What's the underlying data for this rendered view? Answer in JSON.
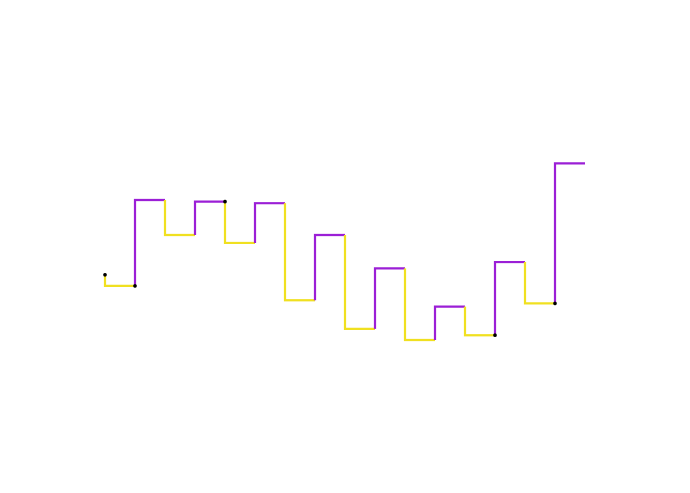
{
  "chart_data": {
    "type": "line",
    "title": "",
    "xlabel": "",
    "ylabel": "",
    "axes_visible": false,
    "grid": false,
    "legend": "none",
    "line_shape": "step",
    "segment_colors": {
      "rise": "#9b1fd6",
      "fall": "#f0e020"
    },
    "marker_color": "#000000",
    "x": [
      0,
      1,
      2,
      3,
      4,
      5,
      6,
      7,
      8,
      9,
      10,
      11,
      12,
      13,
      14,
      15,
      16
    ],
    "y": [
      5.0,
      4.3,
      9.7,
      7.5,
      9.6,
      7.0,
      9.5,
      3.4,
      7.5,
      1.6,
      5.4,
      0.9,
      3.0,
      1.2,
      5.8,
      3.2,
      12.0
    ],
    "marked_points": [
      0,
      1,
      4,
      13,
      15
    ]
  },
  "axes_ranges": {
    "xlim": [
      -0.3,
      16.3
    ],
    "ylim": [
      -3.5,
      18.5
    ]
  }
}
